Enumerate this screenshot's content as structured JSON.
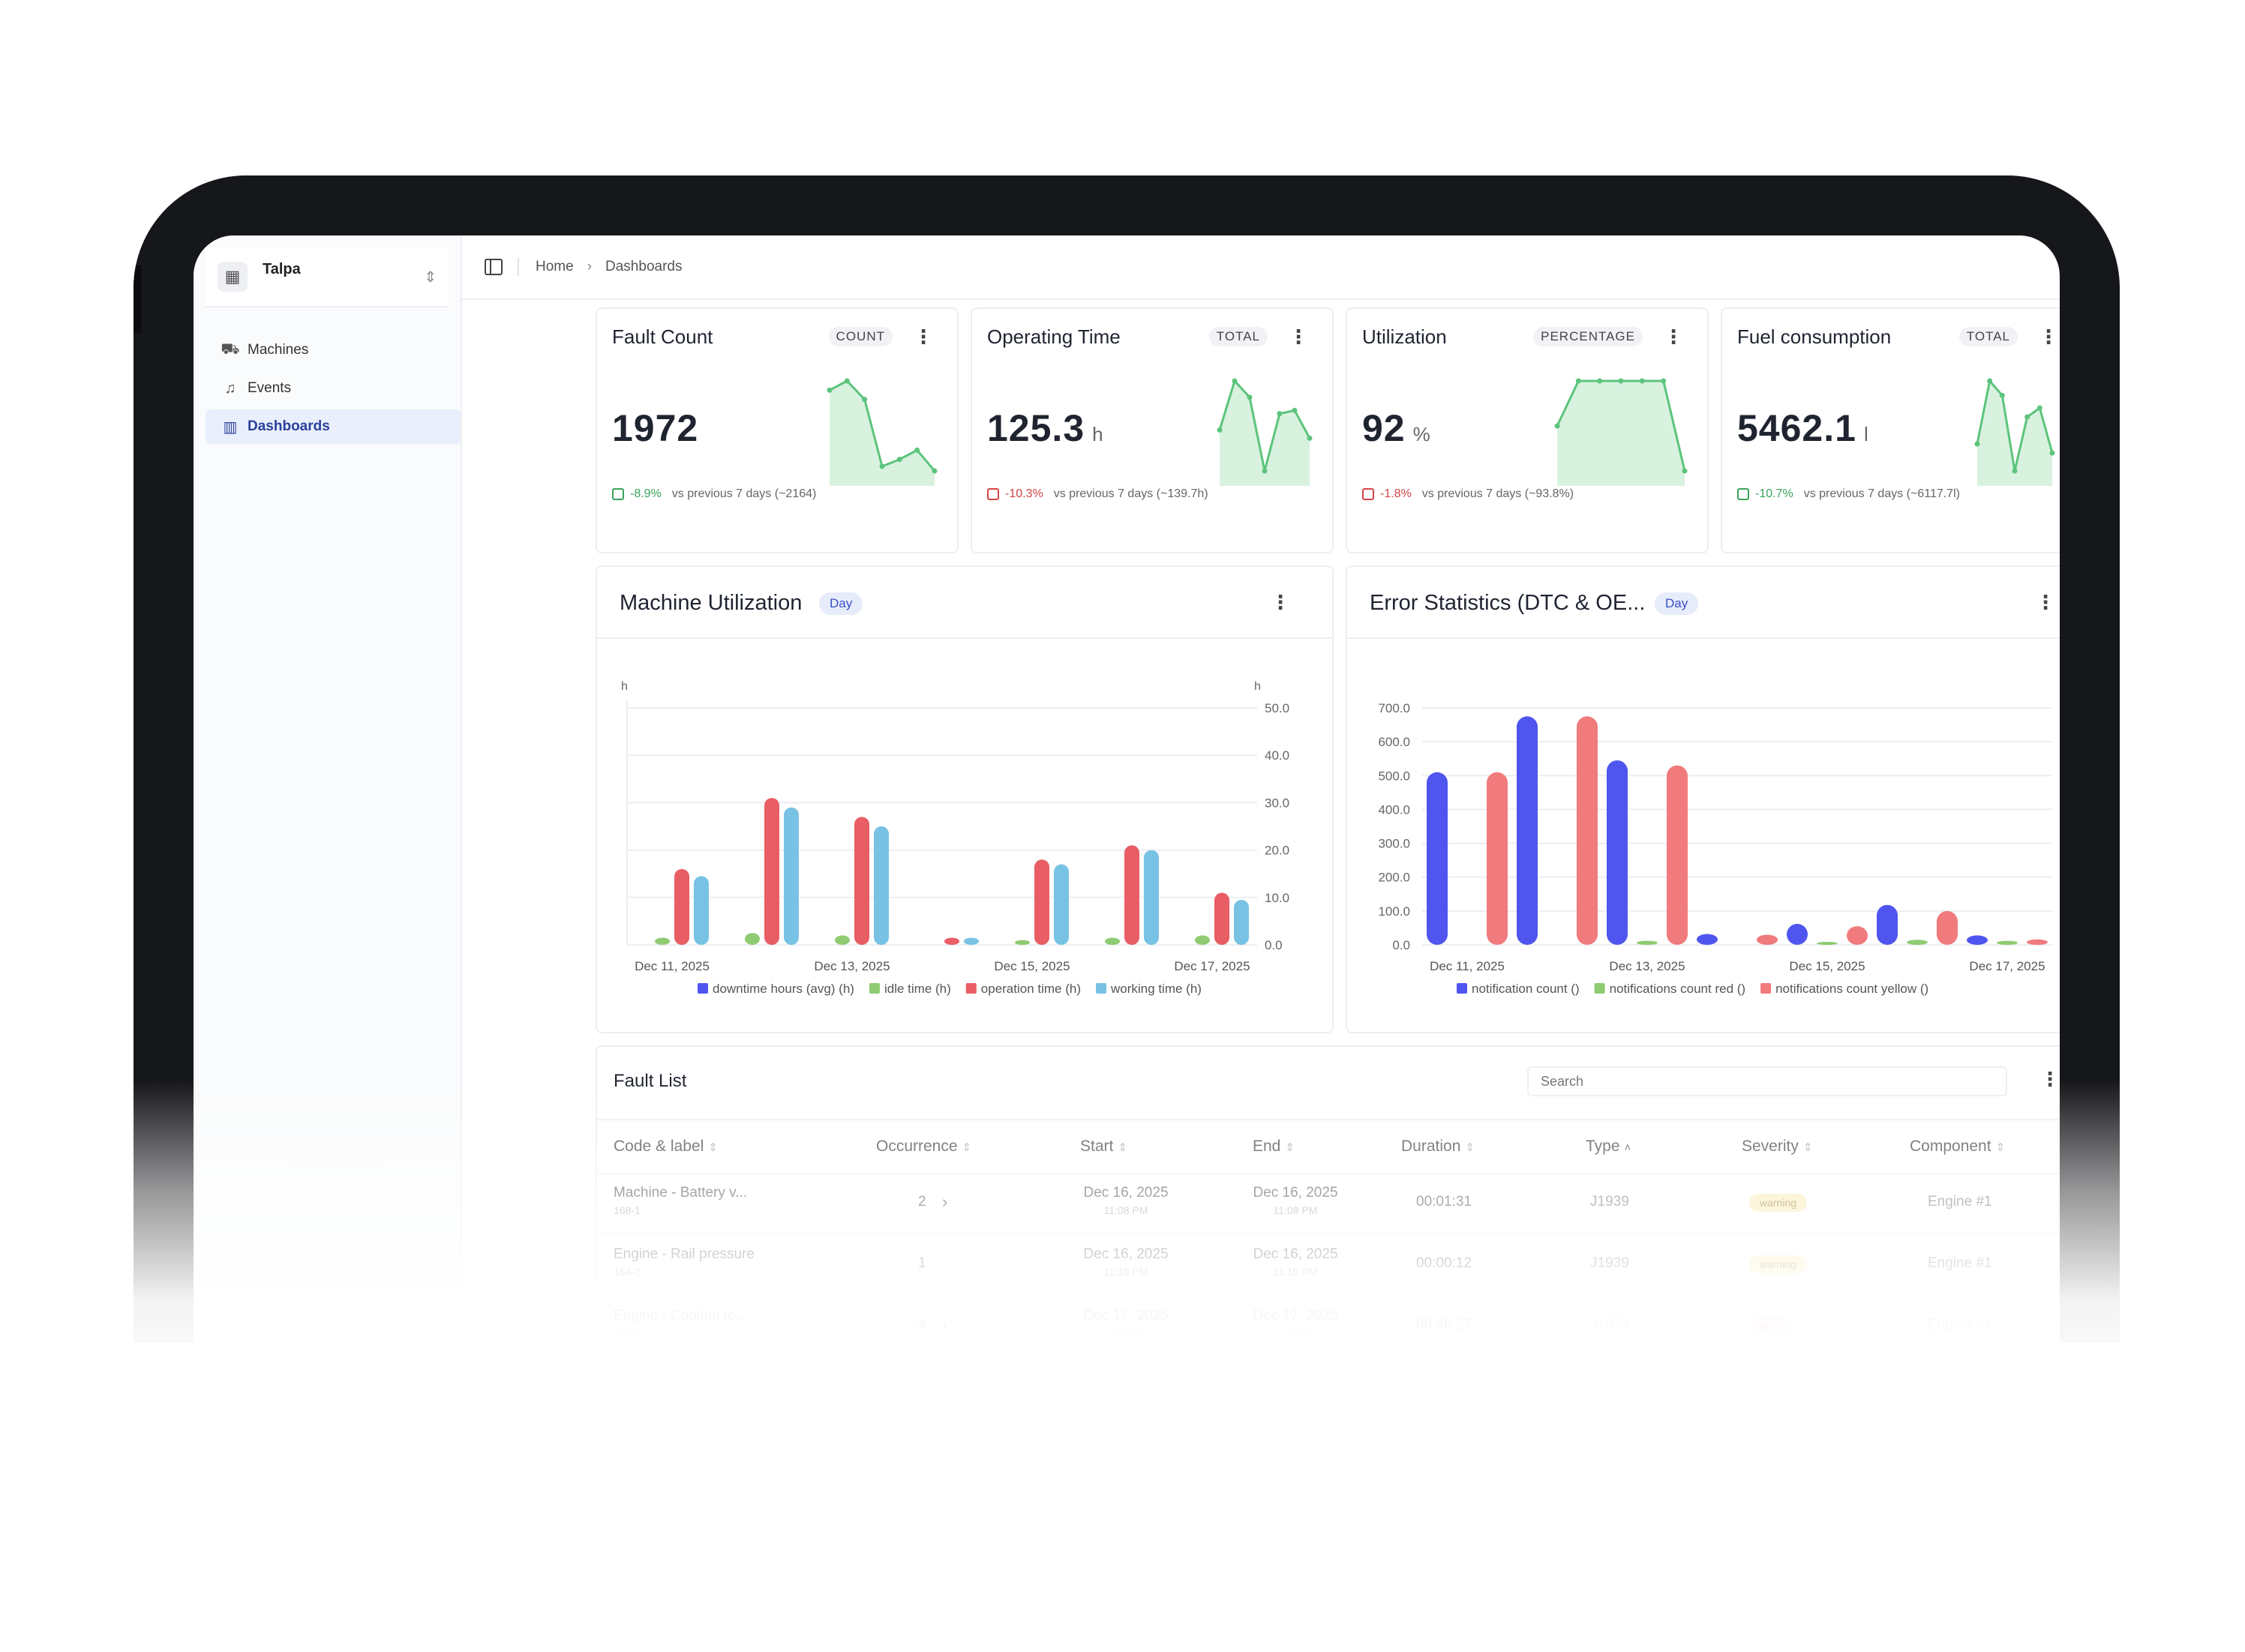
{
  "sidebar": {
    "org_name": "Talpa",
    "items": [
      {
        "label": "Machines",
        "icon": "truck-icon"
      },
      {
        "label": "Events",
        "icon": "bell-icon"
      },
      {
        "label": "Dashboards",
        "icon": "chart-icon",
        "active": true
      }
    ]
  },
  "breadcrumb": {
    "home": "Home",
    "current": "Dashboards"
  },
  "kpis": [
    {
      "title": "Fault Count",
      "badge": "COUNT",
      "value": "1972",
      "unit": "",
      "delta": "-8.9%",
      "delta_color": "#3aa35b",
      "compare": "vs previous 7 days (~2164)",
      "spark": [
        38,
        42,
        34,
        5,
        8,
        12,
        3
      ]
    },
    {
      "title": "Operating Time",
      "badge": "TOTAL",
      "value": "125.3",
      "unit": "h",
      "delta": "-10.3%",
      "delta_color": "#d24545",
      "compare": "vs previous 7 days (~139.7h)",
      "spark": [
        30,
        60,
        50,
        5,
        40,
        42,
        25
      ]
    },
    {
      "title": "Utilization",
      "badge": "PERCENTAGE",
      "value": "92",
      "unit": "%",
      "delta": "-1.8%",
      "delta_color": "#d24545",
      "compare": "vs previous 7 days (~93.8%)",
      "spark": [
        92,
        93,
        93,
        93,
        93,
        93,
        91
      ]
    },
    {
      "title": "Fuel consumption",
      "badge": "TOTAL",
      "value": "5462.1",
      "unit": "l",
      "delta": "-10.7%",
      "delta_color": "#3aa35b",
      "compare": "vs previous 7 days (~6117.7l)",
      "spark": [
        25,
        60,
        52,
        10,
        40,
        45,
        20
      ]
    }
  ],
  "machine_utilization": {
    "title": "Machine Utilization",
    "chip": "Day"
  },
  "error_statistics": {
    "title": "Error Statistics (DTC & OE...",
    "chip": "Day"
  },
  "chart_data": [
    {
      "type": "bar",
      "title": "Machine Utilization",
      "ylabel": "h",
      "y2label": "h",
      "ylim": [
        0,
        50
      ],
      "y_ticks": [
        "50.0",
        "40.0",
        "30.0",
        "20.0",
        "10.0",
        "0.0"
      ],
      "x_labels": [
        "Dec 11, 2025",
        "Dec 13, 2025",
        "Dec 15, 2025",
        "Dec 17, 2025"
      ],
      "x": [
        "Dec 11, 2025",
        "Dec 12, 2025",
        "Dec 13, 2025",
        "Dec 14, 2025",
        "Dec 15, 2025",
        "Dec 16, 2025",
        "Dec 17, 2025"
      ],
      "series": [
        {
          "name": "downtime hours (avg) (h)",
          "color": "#4f55ee",
          "values": [
            0,
            0,
            0,
            0,
            0,
            0,
            0
          ]
        },
        {
          "name": "idle time (h)",
          "color": "#8ecb72",
          "values": [
            1.5,
            2.5,
            2,
            0,
            1,
            1.5,
            2
          ]
        },
        {
          "name": "operation time (h)",
          "color": "#e85e64",
          "values": [
            16,
            31,
            27,
            1.5,
            18,
            21,
            11
          ]
        },
        {
          "name": "working time (h)",
          "color": "#78c2e4",
          "values": [
            14.5,
            29,
            25,
            1.5,
            17,
            20,
            9.5
          ]
        }
      ],
      "legend": "bottom"
    },
    {
      "type": "bar",
      "title": "Error Statistics (DTC & OE...",
      "ylim": [
        0,
        700
      ],
      "y_ticks": [
        "700.0",
        "600.0",
        "500.0",
        "400.0",
        "300.0",
        "200.0",
        "100.0",
        "0.0"
      ],
      "x_labels": [
        "Dec 11, 2025",
        "Dec 13, 2025",
        "Dec 15, 2025",
        "Dec 17, 2025"
      ],
      "x": [
        "Dec 11, 2025",
        "Dec 12, 2025",
        "Dec 13, 2025",
        "Dec 14, 2025",
        "Dec 15, 2025",
        "Dec 16, 2025",
        "Dec 17, 2025"
      ],
      "series": [
        {
          "name": "notification count ()",
          "color": "#4f55ee",
          "values": [
            510,
            675,
            545,
            32,
            62,
            118,
            28
          ]
        },
        {
          "name": "notifications count red ()",
          "color": "#8ecb72",
          "values": [
            0,
            0,
            12,
            0,
            8,
            15,
            12
          ]
        },
        {
          "name": "notifications count yellow ()",
          "color": "#f07a7c",
          "values": [
            510,
            675,
            530,
            30,
            55,
            100,
            16
          ]
        }
      ],
      "legend": "bottom"
    }
  ],
  "fault_list": {
    "title": "Fault List",
    "search_placeholder": "Search",
    "columns": [
      "Code & label",
      "Occurrence",
      "Start",
      "End",
      "Duration",
      "Type",
      "Severity",
      "Component"
    ],
    "rows": [
      {
        "label": "Machine - Battery v...",
        "code": "168-1",
        "occurrence": "2",
        "expand": "›",
        "start_date": "Dec 16, 2025",
        "start_time": "11:08 PM",
        "end_date": "Dec 16, 2025",
        "end_time": "11:08 PM",
        "duration": "00:01:31",
        "type": "J1939",
        "severity": "warning",
        "component": "Engine #1"
      },
      {
        "label": "Engine - Rail pressure",
        "code": "164-2",
        "occurrence": "1",
        "expand": "",
        "start_date": "Dec 16, 2025",
        "start_time": "11:10 PM",
        "end_date": "Dec 16, 2025",
        "end_time": "11:10 PM",
        "duration": "00:00:12",
        "type": "J1939",
        "severity": "warning",
        "component": "Engine #1"
      },
      {
        "label": "Engine - Coolant te...",
        "code": "110-0",
        "occurrence": "4",
        "expand": "›",
        "start_date": "Dec 17, 2025",
        "start_time": "1:02 AM",
        "end_date": "Dec 17, 2025",
        "end_time": "1:50 AM",
        "duration": "00:48:27",
        "type": "J1939",
        "severity": "error",
        "component": "Engine #1"
      }
    ]
  }
}
